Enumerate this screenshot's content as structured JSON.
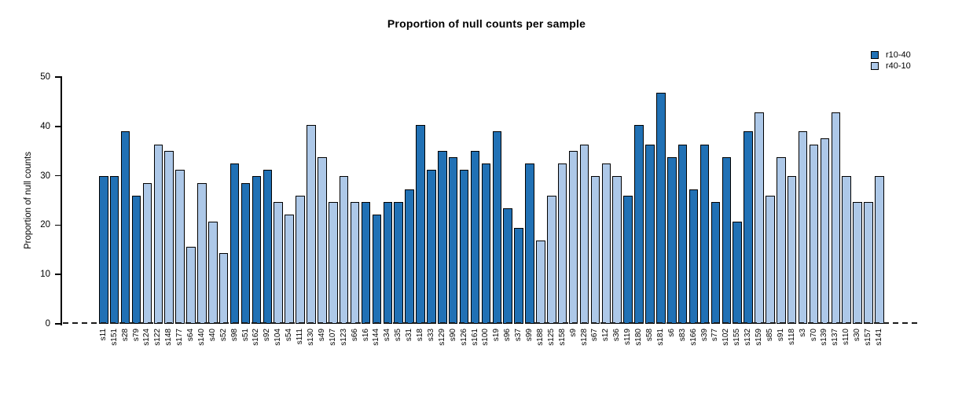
{
  "chart_data": {
    "type": "bar",
    "title": "Proportion of null counts per sample",
    "ylabel": "Proportion of null counts",
    "xlabel": "",
    "ylim": [
      0,
      50
    ],
    "yticks": [
      0,
      10,
      20,
      30,
      40,
      50
    ],
    "grid": false,
    "legend_position": "top-right",
    "baseline": {
      "y": 0,
      "style": "dashed"
    },
    "legend": [
      {
        "name": "r10-40",
        "color": "#2171b5"
      },
      {
        "name": "r40-10",
        "color": "#adc8e8"
      }
    ],
    "samples": [
      {
        "label": "s11",
        "value": 29.87,
        "series": "r10-40"
      },
      {
        "label": "s151",
        "value": 29.87,
        "series": "r10-40"
      },
      {
        "label": "s28",
        "value": 38.96,
        "series": "r10-40"
      },
      {
        "label": "s79",
        "value": 25.97,
        "series": "r10-40"
      },
      {
        "label": "s124",
        "value": 28.57,
        "series": "r40-10"
      },
      {
        "label": "s122",
        "value": 36.36,
        "series": "r40-10"
      },
      {
        "label": "s148",
        "value": 35.06,
        "series": "r40-10"
      },
      {
        "label": "s177",
        "value": 31.17,
        "series": "r40-10"
      },
      {
        "label": "s64",
        "value": 15.58,
        "series": "r40-10"
      },
      {
        "label": "s140",
        "value": 28.57,
        "series": "r40-10"
      },
      {
        "label": "s40",
        "value": 20.78,
        "series": "r40-10"
      },
      {
        "label": "s52",
        "value": 14.29,
        "series": "r40-10"
      },
      {
        "label": "s98",
        "value": 32.47,
        "series": "r10-40"
      },
      {
        "label": "s51",
        "value": 28.57,
        "series": "r10-40"
      },
      {
        "label": "s162",
        "value": 29.87,
        "series": "r10-40"
      },
      {
        "label": "s92",
        "value": 31.17,
        "series": "r10-40"
      },
      {
        "label": "s104",
        "value": 24.68,
        "series": "r40-10"
      },
      {
        "label": "s54",
        "value": 22.08,
        "series": "r40-10"
      },
      {
        "label": "s111",
        "value": 25.97,
        "series": "r40-10"
      },
      {
        "label": "s130",
        "value": 40.26,
        "series": "r40-10"
      },
      {
        "label": "s49",
        "value": 33.77,
        "series": "r40-10"
      },
      {
        "label": "s107",
        "value": 24.68,
        "series": "r40-10"
      },
      {
        "label": "s123",
        "value": 29.87,
        "series": "r40-10"
      },
      {
        "label": "s66",
        "value": 24.68,
        "series": "r40-10"
      },
      {
        "label": "s16",
        "value": 24.68,
        "series": "r10-40"
      },
      {
        "label": "s144",
        "value": 22.08,
        "series": "r10-40"
      },
      {
        "label": "s34",
        "value": 24.68,
        "series": "r10-40"
      },
      {
        "label": "s35",
        "value": 24.68,
        "series": "r10-40"
      },
      {
        "label": "s31",
        "value": 27.27,
        "series": "r10-40"
      },
      {
        "label": "s18",
        "value": 40.26,
        "series": "r10-40"
      },
      {
        "label": "s33",
        "value": 31.17,
        "series": "r10-40"
      },
      {
        "label": "s129",
        "value": 35.06,
        "series": "r10-40"
      },
      {
        "label": "s90",
        "value": 33.77,
        "series": "r10-40"
      },
      {
        "label": "s126",
        "value": 31.17,
        "series": "r10-40"
      },
      {
        "label": "s161",
        "value": 35.06,
        "series": "r10-40"
      },
      {
        "label": "s100",
        "value": 32.47,
        "series": "r10-40"
      },
      {
        "label": "s19",
        "value": 38.96,
        "series": "r10-40"
      },
      {
        "label": "s96",
        "value": 23.38,
        "series": "r10-40"
      },
      {
        "label": "s37",
        "value": 19.48,
        "series": "r10-40"
      },
      {
        "label": "s99",
        "value": 32.47,
        "series": "r10-40"
      },
      {
        "label": "s188",
        "value": 16.88,
        "series": "r40-10"
      },
      {
        "label": "s125",
        "value": 25.97,
        "series": "r40-10"
      },
      {
        "label": "s158",
        "value": 32.47,
        "series": "r40-10"
      },
      {
        "label": "s9",
        "value": 35.06,
        "series": "r40-10"
      },
      {
        "label": "s128",
        "value": 36.36,
        "series": "r40-10"
      },
      {
        "label": "s67",
        "value": 29.87,
        "series": "r40-10"
      },
      {
        "label": "s12",
        "value": 32.47,
        "series": "r40-10"
      },
      {
        "label": "s36",
        "value": 29.87,
        "series": "r40-10"
      },
      {
        "label": "s119",
        "value": 25.97,
        "series": "r10-40"
      },
      {
        "label": "s180",
        "value": 40.26,
        "series": "r10-40"
      },
      {
        "label": "s58",
        "value": 36.36,
        "series": "r10-40"
      },
      {
        "label": "s181",
        "value": 46.75,
        "series": "r10-40"
      },
      {
        "label": "s6",
        "value": 33.77,
        "series": "r10-40"
      },
      {
        "label": "s83",
        "value": 36.36,
        "series": "r10-40"
      },
      {
        "label": "s166",
        "value": 27.27,
        "series": "r10-40"
      },
      {
        "label": "s39",
        "value": 36.36,
        "series": "r10-40"
      },
      {
        "label": "s77",
        "value": 24.68,
        "series": "r10-40"
      },
      {
        "label": "s102",
        "value": 33.77,
        "series": "r10-40"
      },
      {
        "label": "s155",
        "value": 20.78,
        "series": "r10-40"
      },
      {
        "label": "s132",
        "value": 38.96,
        "series": "r10-40"
      },
      {
        "label": "s159",
        "value": 42.86,
        "series": "r40-10"
      },
      {
        "label": "s85",
        "value": 25.97,
        "series": "r40-10"
      },
      {
        "label": "s91",
        "value": 33.77,
        "series": "r40-10"
      },
      {
        "label": "s118",
        "value": 29.87,
        "series": "r40-10"
      },
      {
        "label": "s3",
        "value": 38.96,
        "series": "r40-10"
      },
      {
        "label": "s70",
        "value": 36.36,
        "series": "r40-10"
      },
      {
        "label": "s139",
        "value": 37.66,
        "series": "r40-10"
      },
      {
        "label": "s137",
        "value": 42.86,
        "series": "r40-10"
      },
      {
        "label": "s110",
        "value": 29.87,
        "series": "r40-10"
      },
      {
        "label": "s30",
        "value": 24.68,
        "series": "r40-10"
      },
      {
        "label": "s157",
        "value": 24.68,
        "series": "r40-10"
      },
      {
        "label": "s141",
        "value": 29.87,
        "series": "r40-10"
      }
    ]
  }
}
